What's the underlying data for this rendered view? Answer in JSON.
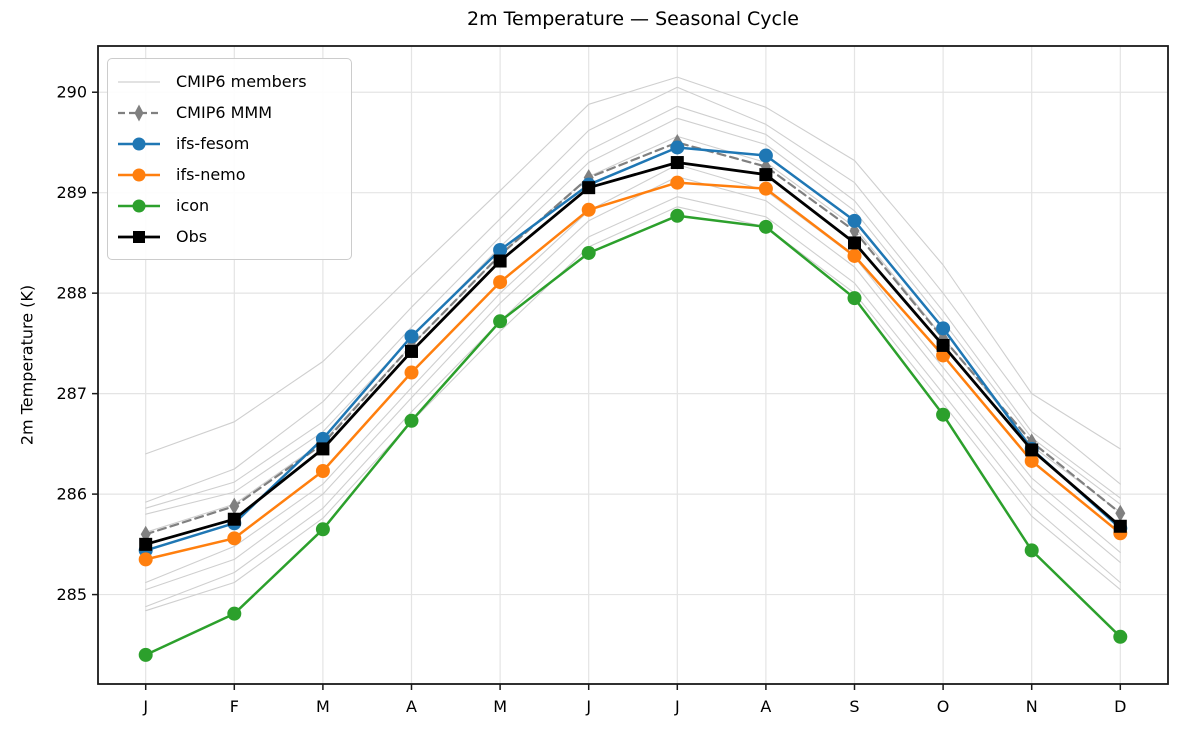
{
  "title": "2m Temperature — Seasonal Cycle",
  "axes": {
    "ylabel": "2m Temperature (K)",
    "yticks": [
      285,
      286,
      287,
      288,
      289,
      290
    ],
    "xticklabels": [
      "J",
      "F",
      "M",
      "A",
      "M",
      "J",
      "J",
      "A",
      "S",
      "O",
      "N",
      "D"
    ],
    "grid": true
  },
  "colors": {
    "member_gray": "#cfcfcf",
    "mmm_gray": "#808080",
    "ifs_fesom_blue": "#1f77b4",
    "ifs_nemo_orange": "#ff7f0e",
    "icon_green": "#2ca02c",
    "obs_black": "#000000",
    "gridline": "#e4e4e4",
    "spine": "#1a1a1a"
  },
  "legend": {
    "position": "upper-left",
    "items": [
      {
        "label": "CMIP6 members",
        "swatch": "line",
        "color": "#d9d9d9",
        "lw": 1.5
      },
      {
        "label": "CMIP6 MMM",
        "swatch": "dashed-diamond",
        "color": "#808080",
        "lw": 2.2
      },
      {
        "label": "ifs-fesom",
        "swatch": "line-circle",
        "color": "#1f77b4",
        "lw": 2.5
      },
      {
        "label": "ifs-nemo",
        "swatch": "line-circle",
        "color": "#ff7f0e",
        "lw": 2.5
      },
      {
        "label": "icon",
        "swatch": "line-circle",
        "color": "#2ca02c",
        "lw": 2.5
      },
      {
        "label": "Obs",
        "swatch": "line-square",
        "color": "#000000",
        "lw": 2.8
      }
    ]
  },
  "chart_data": {
    "type": "line",
    "title": "2m Temperature — Seasonal Cycle",
    "xlabel": "",
    "ylabel": "2m Temperature (K)",
    "categories": [
      "J",
      "F",
      "M",
      "A",
      "M",
      "J",
      "J",
      "A",
      "S",
      "O",
      "N",
      "D"
    ],
    "ylim": [
      284.11,
      290.46
    ],
    "yticks": [
      285,
      286,
      287,
      288,
      289,
      290
    ],
    "grid": true,
    "legend_position": "upper left",
    "series": [
      {
        "name": "CMIP6 member 1",
        "group": "CMIP6 members",
        "color": "#cfcfcf",
        "lw": 1.1,
        "marker": "none",
        "values": [
          286.4,
          286.72,
          287.32,
          288.18,
          289.02,
          289.88,
          290.15,
          289.85,
          289.32,
          288.28,
          287.0,
          286.45
        ]
      },
      {
        "name": "CMIP6 member 2",
        "group": "CMIP6 members",
        "color": "#cfcfcf",
        "lw": 1.1,
        "marker": "none",
        "values": [
          285.92,
          286.25,
          286.92,
          287.86,
          288.74,
          289.62,
          290.05,
          289.68,
          289.1,
          288.0,
          286.82,
          286.1
        ]
      },
      {
        "name": "CMIP6 member 3",
        "group": "CMIP6 members",
        "color": "#cfcfcf",
        "lw": 1.1,
        "marker": "none",
        "values": [
          285.86,
          286.12,
          286.72,
          287.66,
          288.56,
          289.42,
          289.86,
          289.58,
          288.92,
          287.82,
          286.62,
          285.96
        ]
      },
      {
        "name": "CMIP6 member 4",
        "group": "CMIP6 members",
        "color": "#cfcfcf",
        "lw": 1.1,
        "marker": "none",
        "values": [
          285.8,
          286.02,
          286.62,
          287.56,
          288.46,
          289.3,
          289.74,
          289.48,
          288.82,
          287.72,
          286.56,
          285.9
        ]
      },
      {
        "name": "CMIP6 member 5",
        "group": "CMIP6 members",
        "color": "#cfcfcf",
        "lw": 1.1,
        "marker": "none",
        "values": [
          285.62,
          285.9,
          286.52,
          287.48,
          288.38,
          289.16,
          289.56,
          289.3,
          288.66,
          287.56,
          286.48,
          285.82
        ]
      },
      {
        "name": "CMIP6 member 6",
        "group": "CMIP6 members",
        "color": "#cfcfcf",
        "lw": 1.1,
        "marker": "none",
        "values": [
          285.12,
          285.48,
          286.1,
          287.06,
          288.0,
          288.82,
          289.28,
          289.02,
          288.36,
          287.26,
          286.16,
          285.42
        ]
      },
      {
        "name": "CMIP6 member 7",
        "group": "CMIP6 members",
        "color": "#cfcfcf",
        "lw": 1.1,
        "marker": "none",
        "values": [
          285.05,
          285.35,
          286.0,
          286.96,
          287.9,
          288.72,
          289.16,
          288.92,
          288.26,
          287.16,
          286.06,
          285.32
        ]
      },
      {
        "name": "CMIP6 member 8",
        "group": "CMIP6 members",
        "color": "#cfcfcf",
        "lw": 1.1,
        "marker": "none",
        "values": [
          284.88,
          285.22,
          285.86,
          286.82,
          287.72,
          288.56,
          288.96,
          288.76,
          288.1,
          287.0,
          285.88,
          285.12
        ]
      },
      {
        "name": "CMIP6 member 9",
        "group": "CMIP6 members",
        "color": "#cfcfcf",
        "lw": 1.1,
        "marker": "none",
        "values": [
          284.84,
          285.12,
          285.76,
          286.72,
          287.62,
          288.46,
          288.86,
          288.66,
          288.0,
          286.9,
          285.78,
          285.05
        ]
      },
      {
        "name": "CMIP6 MMM",
        "color": "#808080",
        "lw": 2.2,
        "dash": "8 5",
        "marker": "diamond",
        "marker_w": 5,
        "marker_h": 8.5,
        "values": [
          285.6,
          285.88,
          286.5,
          287.48,
          288.38,
          289.15,
          289.5,
          289.26,
          288.62,
          287.55,
          286.52,
          285.81
        ]
      },
      {
        "name": "ifs-fesom",
        "color": "#1f77b4",
        "lw": 2.5,
        "marker": "circle",
        "marker_r": 7,
        "values": [
          285.44,
          285.71,
          286.55,
          287.57,
          288.43,
          289.08,
          289.45,
          289.37,
          288.72,
          287.65,
          286.45,
          285.66
        ]
      },
      {
        "name": "ifs-nemo",
        "color": "#ff7f0e",
        "lw": 2.5,
        "marker": "circle",
        "marker_r": 7,
        "values": [
          285.35,
          285.56,
          286.23,
          287.21,
          288.11,
          288.83,
          289.1,
          289.04,
          288.37,
          287.38,
          286.33,
          285.61
        ]
      },
      {
        "name": "icon",
        "color": "#2ca02c",
        "lw": 2.5,
        "marker": "circle",
        "marker_r": 7,
        "values": [
          284.4,
          284.81,
          285.65,
          286.73,
          287.72,
          288.4,
          288.77,
          288.66,
          287.95,
          286.79,
          285.44,
          284.58
        ]
      },
      {
        "name": "Obs",
        "color": "#000000",
        "lw": 2.8,
        "marker": "square",
        "marker_r": 6.5,
        "values": [
          285.5,
          285.75,
          286.45,
          287.42,
          288.32,
          289.05,
          289.3,
          289.18,
          288.5,
          287.48,
          286.44,
          285.68
        ]
      }
    ]
  }
}
